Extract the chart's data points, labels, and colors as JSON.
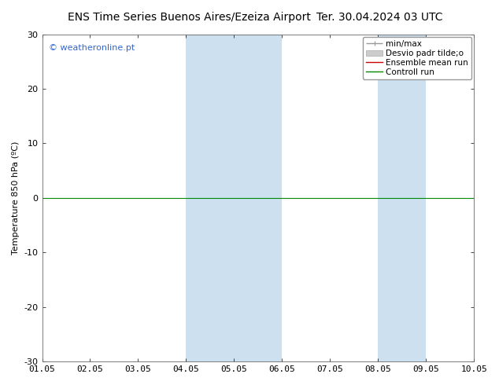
{
  "title_left": "ENS Time Series Buenos Aires/Ezeiza Airport",
  "title_right": "Ter. 30.04.2024 03 UTC",
  "ylabel": "Temperature 850 hPa (ºC)",
  "ylim": [
    -30,
    30
  ],
  "yticks": [
    -30,
    -20,
    -10,
    0,
    10,
    20,
    30
  ],
  "xtick_labels": [
    "01.05",
    "02.05",
    "03.05",
    "04.05",
    "05.05",
    "06.05",
    "07.05",
    "08.05",
    "09.05",
    "10.05"
  ],
  "shaded_regions": [
    {
      "xmin": 3,
      "xmax": 4,
      "color": "#cce0f0"
    },
    {
      "xmin": 4,
      "xmax": 5,
      "color": "#cce0f0"
    },
    {
      "xmin": 7,
      "xmax": 8,
      "color": "#cce0f0"
    }
  ],
  "zero_line_color": "#008800",
  "watermark": "© weatheronline.pt",
  "watermark_color": "#3366cc",
  "background_color": "#ffffff",
  "plot_bg_color": "#ffffff",
  "legend_entries": [
    {
      "label": "min/max",
      "color": "#999999",
      "lw": 1.0
    },
    {
      "label": "Desvio padr tilde;o",
      "color": "#bbbbbb",
      "lw": 6
    },
    {
      "label": "Ensemble mean run",
      "color": "#cc0000",
      "lw": 1.0
    },
    {
      "label": "Controll run",
      "color": "#008800",
      "lw": 1.0
    }
  ],
  "title_fontsize": 10,
  "axis_label_fontsize": 8,
  "tick_fontsize": 8,
  "legend_fontsize": 7.5,
  "fig_width": 6.34,
  "fig_height": 4.9,
  "dpi": 100
}
